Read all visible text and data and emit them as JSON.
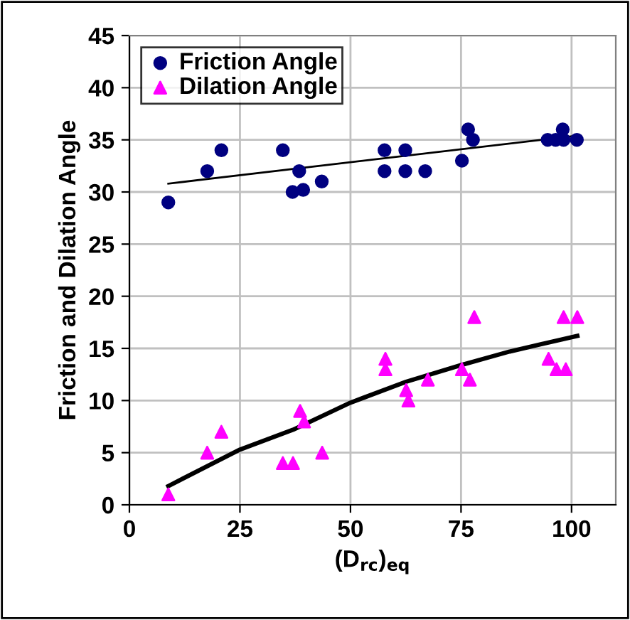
{
  "chart_data": {
    "type": "scatter",
    "xlabel": "(D$_{rc}$)$_{eq}$",
    "ylabel": "Friction and Dilation Angle",
    "xlim": [
      0,
      110
    ],
    "ylim": [
      0,
      45
    ],
    "xticks": [
      0,
      25,
      50,
      75,
      100
    ],
    "yticks": [
      0,
      5,
      10,
      15,
      20,
      25,
      30,
      35,
      40,
      45
    ],
    "grid": true,
    "legend": "top left",
    "series": [
      {
        "name": "Friction Angle",
        "color": "#000080",
        "marker": "circle",
        "x": [
          8.8,
          17.6,
          20.8,
          34.7,
          36.9,
          38.4,
          39.3,
          43.5,
          57.7,
          57.7,
          62.4,
          62.4,
          66.9,
          75.2,
          76.6,
          77.7,
          94.6,
          96.4,
          98,
          98.2,
          101.2
        ],
        "values": [
          29,
          32,
          34,
          34,
          30,
          32,
          30.2,
          31,
          34,
          32,
          34,
          32,
          32,
          33,
          36,
          35,
          35,
          35,
          36,
          35,
          35
        ]
      },
      {
        "name": "Dilation Angle",
        "color": "#ff00ff",
        "marker": "triangle",
        "x": [
          8.8,
          17.6,
          20.8,
          34.7,
          37,
          38.6,
          39.5,
          43.6,
          57.9,
          57.9,
          62.6,
          63.1,
          67.5,
          75.2,
          77,
          78,
          94.8,
          96.6,
          98.2,
          98.7,
          101.3
        ],
        "values": [
          1,
          5,
          7,
          4,
          4,
          9,
          8,
          5,
          14,
          13,
          11,
          10,
          12,
          13,
          12,
          18,
          14,
          13,
          18,
          13,
          18
        ]
      },
      {
        "type": "line",
        "color": "#000000",
        "marker": "none",
        "x": [
          8.8,
          101.3
        ],
        "values": [
          30.8,
          35.4
        ]
      },
      {
        "type": "line",
        "color": "#000000",
        "marker": "none",
        "x": [
          8.8,
          25,
          37,
          50,
          62.6,
          75,
          86,
          101.3
        ],
        "values": [
          1.8,
          5.3,
          7.2,
          9.8,
          11.8,
          13.4,
          14.7,
          16.2
        ]
      }
    ]
  }
}
